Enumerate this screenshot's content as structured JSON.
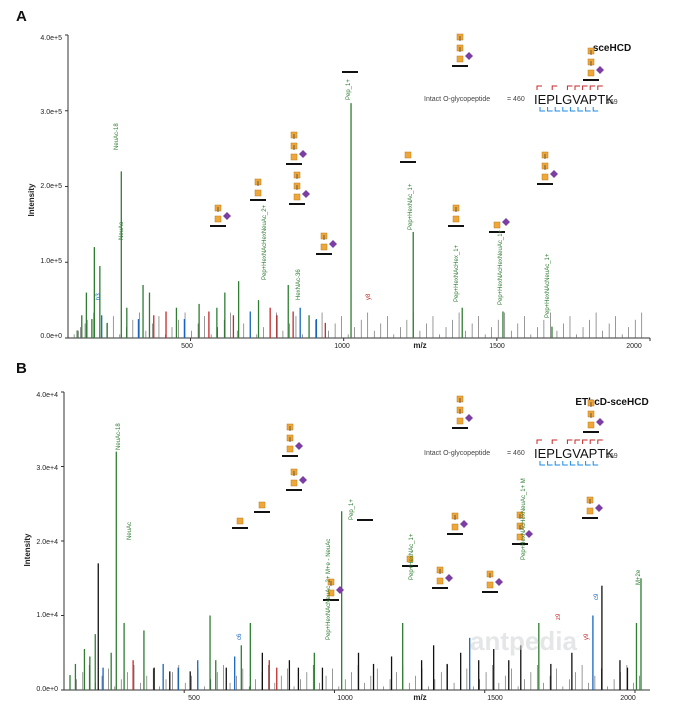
{
  "chart_data": [
    {
      "type": "bar",
      "panel": "A",
      "method": "sceHCD",
      "xlabel": "m/z",
      "ylabel": "Intensity",
      "xlim": [
        100,
        2000
      ],
      "ylim": [
        0,
        400000
      ],
      "yticks": [
        "0.0e+0",
        "1.0e+5",
        "2.0e+5",
        "3.0e+5",
        "4.0e+5"
      ],
      "xticks": [
        "500",
        "1000",
        "1500",
        "2000"
      ],
      "intact_label": "Intact O-glycopeptide",
      "seq_start": "460",
      "sequence": "IEPLGVAPTK",
      "seq_end": "469",
      "peaks": [
        {
          "x": 130,
          "y": 10000,
          "color": "#2e7d32"
        },
        {
          "x": 145,
          "y": 30000,
          "color": "#2e7d32"
        },
        {
          "x": 160,
          "y": 60000,
          "color": "#2e7d32"
        },
        {
          "x": 178,
          "y": 25000,
          "color": "#2e7d32"
        },
        {
          "x": 186,
          "y": 120000,
          "color": "#2e7d32"
        },
        {
          "x": 204,
          "y": 95000,
          "color": "#2e7d32"
        },
        {
          "x": 210,
          "y": 30000,
          "color": "#1565c0"
        },
        {
          "x": 228,
          "y": 20000,
          "color": "#2e7d32"
        },
        {
          "x": 274,
          "y": 220000,
          "color": "#2e7d32"
        },
        {
          "x": 292,
          "y": 40000,
          "color": "#2e7d32"
        },
        {
          "x": 330,
          "y": 25000,
          "color": "#1565c0"
        },
        {
          "x": 345,
          "y": 70000,
          "color": "#2e7d32"
        },
        {
          "x": 366,
          "y": 60000,
          "color": "#2e7d32"
        },
        {
          "x": 380,
          "y": 30000,
          "color": "#c62828"
        },
        {
          "x": 420,
          "y": 35000,
          "color": "#c62828"
        },
        {
          "x": 454,
          "y": 40000,
          "color": "#2e7d32"
        },
        {
          "x": 480,
          "y": 25000,
          "color": "#1565c0"
        },
        {
          "x": 528,
          "y": 45000,
          "color": "#2e7d32"
        },
        {
          "x": 560,
          "y": 35000,
          "color": "#c62828"
        },
        {
          "x": 586,
          "y": 40000,
          "color": "#2e7d32"
        },
        {
          "x": 612,
          "y": 60000,
          "color": "#2e7d32"
        },
        {
          "x": 640,
          "y": 30000,
          "color": "#c62828"
        },
        {
          "x": 657,
          "y": 75000,
          "color": "#2e7d32"
        },
        {
          "x": 695,
          "y": 35000,
          "color": "#1565c0"
        },
        {
          "x": 722,
          "y": 50000,
          "color": "#2e7d32"
        },
        {
          "x": 760,
          "y": 40000,
          "color": "#c62828"
        },
        {
          "x": 782,
          "y": 30000,
          "color": "#c62828"
        },
        {
          "x": 819,
          "y": 70000,
          "color": "#2e7d32"
        },
        {
          "x": 835,
          "y": 35000,
          "color": "#c62828"
        },
        {
          "x": 858,
          "y": 40000,
          "color": "#1565c0"
        },
        {
          "x": 887,
          "y": 30000,
          "color": "#2e7d32"
        },
        {
          "x": 911,
          "y": 25000,
          "color": "#1565c0"
        },
        {
          "x": 940,
          "y": 20000,
          "color": "#c62828"
        },
        {
          "x": 1024,
          "y": 310000,
          "color": "#2e7d32"
        },
        {
          "x": 1227,
          "y": 140000,
          "color": "#2e7d32"
        },
        {
          "x": 1387,
          "y": 40000,
          "color": "#2e7d32"
        },
        {
          "x": 1520,
          "y": 35000,
          "color": "#2e7d32"
        },
        {
          "x": 1680,
          "y": 15000,
          "color": "#2e7d32"
        }
      ]
    },
    {
      "type": "bar",
      "panel": "B",
      "method": "EThcD-sceHCD",
      "xlabel": "m/z",
      "ylabel": "Intensity",
      "xlim": [
        100,
        2050
      ],
      "ylim": [
        0,
        40000
      ],
      "yticks": [
        "0.0e+0",
        "1.0e+4",
        "2.0e+4",
        "3.0e+4",
        "4.0e+4"
      ],
      "xticks": [
        "500",
        "1000",
        "1500",
        "2000"
      ],
      "intact_label": "Intact O-glycopeptide",
      "seq_start": "460",
      "sequence": "IEPLGVAPTK",
      "seq_end": "469",
      "peaks": [
        {
          "x": 120,
          "y": 2000,
          "color": "#2e7d32"
        },
        {
          "x": 138,
          "y": 3500,
          "color": "#2e7d32"
        },
        {
          "x": 168,
          "y": 5500,
          "color": "#2e7d32"
        },
        {
          "x": 186,
          "y": 4500,
          "color": "#2e7d32"
        },
        {
          "x": 204,
          "y": 7500,
          "color": "#2e7d32"
        },
        {
          "x": 214,
          "y": 17000,
          "color": "#111111"
        },
        {
          "x": 230,
          "y": 3000,
          "color": "#1565c0"
        },
        {
          "x": 257,
          "y": 5000,
          "color": "#2e7d32"
        },
        {
          "x": 274,
          "y": 32000,
          "color": "#2e7d32"
        },
        {
          "x": 300,
          "y": 9000,
          "color": "#2e7d32"
        },
        {
          "x": 330,
          "y": 4000,
          "color": "#c62828"
        },
        {
          "x": 366,
          "y": 8000,
          "color": "#2e7d32"
        },
        {
          "x": 400,
          "y": 3000,
          "color": "#111111"
        },
        {
          "x": 430,
          "y": 3500,
          "color": "#1565c0"
        },
        {
          "x": 452,
          "y": 2500,
          "color": "#111111"
        },
        {
          "x": 480,
          "y": 3000,
          "color": "#1565c0"
        },
        {
          "x": 520,
          "y": 2500,
          "color": "#111111"
        },
        {
          "x": 545,
          "y": 4000,
          "color": "#1565c0"
        },
        {
          "x": 586,
          "y": 10000,
          "color": "#2e7d32"
        },
        {
          "x": 605,
          "y": 4000,
          "color": "#2e7d32"
        },
        {
          "x": 640,
          "y": 3000,
          "color": "#111111"
        },
        {
          "x": 668,
          "y": 4500,
          "color": "#1565c0"
        },
        {
          "x": 690,
          "y": 6000,
          "color": "#2e7d32"
        },
        {
          "x": 720,
          "y": 9000,
          "color": "#2e7d32"
        },
        {
          "x": 760,
          "y": 5000,
          "color": "#111111"
        },
        {
          "x": 783,
          "y": 4000,
          "color": "#c62828"
        },
        {
          "x": 808,
          "y": 3000,
          "color": "#c62828"
        },
        {
          "x": 850,
          "y": 4000,
          "color": "#111111"
        },
        {
          "x": 880,
          "y": 3000,
          "color": "#111111"
        },
        {
          "x": 933,
          "y": 5000,
          "color": "#2e7d32"
        },
        {
          "x": 960,
          "y": 3000,
          "color": "#111111"
        },
        {
          "x": 1024,
          "y": 24000,
          "color": "#2e7d32"
        },
        {
          "x": 1080,
          "y": 5000,
          "color": "#111111"
        },
        {
          "x": 1130,
          "y": 3500,
          "color": "#111111"
        },
        {
          "x": 1190,
          "y": 4500,
          "color": "#111111"
        },
        {
          "x": 1227,
          "y": 9000,
          "color": "#2e7d32"
        },
        {
          "x": 1290,
          "y": 4000,
          "color": "#111111"
        },
        {
          "x": 1330,
          "y": 6000,
          "color": "#111111"
        },
        {
          "x": 1375,
          "y": 3500,
          "color": "#111111"
        },
        {
          "x": 1420,
          "y": 5000,
          "color": "#111111"
        },
        {
          "x": 1450,
          "y": 7000,
          "color": "#1565c0"
        },
        {
          "x": 1480,
          "y": 4000,
          "color": "#111111"
        },
        {
          "x": 1530,
          "y": 5500,
          "color": "#111111"
        },
        {
          "x": 1580,
          "y": 4000,
          "color": "#111111"
        },
        {
          "x": 1620,
          "y": 6000,
          "color": "#111111"
        },
        {
          "x": 1680,
          "y": 9000,
          "color": "#2e7d32"
        },
        {
          "x": 1720,
          "y": 3500,
          "color": "#111111"
        },
        {
          "x": 1790,
          "y": 5000,
          "color": "#111111"
        },
        {
          "x": 1860,
          "y": 10000,
          "color": "#1565c0"
        },
        {
          "x": 1890,
          "y": 14000,
          "color": "#111111"
        },
        {
          "x": 1950,
          "y": 4000,
          "color": "#111111"
        },
        {
          "x": 1975,
          "y": 3000,
          "color": "#111111"
        },
        {
          "x": 2005,
          "y": 9000,
          "color": "#2e7d32"
        },
        {
          "x": 2020,
          "y": 15000,
          "color": "#2e7d32"
        }
      ]
    }
  ],
  "panel_a_labels": [
    {
      "text": "NeuAc-18",
      "color": "#2e7d32"
    },
    {
      "text": "Pep_1+",
      "color": "#2e7d32"
    },
    {
      "text": "Pep+HexNAc_1+",
      "color": "#2e7d32"
    },
    {
      "text": "Pep+HexNAcHex_1+",
      "color": "#2e7d32"
    },
    {
      "text": "Pep+HexNAcNeuAc_1+",
      "color": "#2e7d32"
    },
    {
      "text": "Pep+HexNAcHexNeuAc_1+",
      "color": "#2e7d32"
    },
    {
      "text": "NeuAc",
      "color": "#2e7d32"
    },
    {
      "text": "HexNAc-36",
      "color": "#2e7d32"
    },
    {
      "text": "Pep+HexNAcHexNeuAc_2+",
      "color": "#2e7d32"
    },
    {
      "text": "y8",
      "color": "#c62828"
    },
    {
      "text": "b3",
      "color": "#1565c0"
    }
  ],
  "panel_b_labels": [
    {
      "text": "NeuAc-18",
      "color": "#2e7d32"
    },
    {
      "text": "NeuAc",
      "color": "#2e7d32"
    },
    {
      "text": "Pep_1+",
      "color": "#2e7d32"
    },
    {
      "text": "Pep+HexNAc_1+",
      "color": "#2e7d32"
    },
    {
      "text": "Pep+HexNAcHexNeuAc_1+ M",
      "color": "#2e7d32"
    },
    {
      "text": "Pep+HexNAcNeuAc_2+ M+e - NeuAc",
      "color": "#2e7d32"
    },
    {
      "text": "M+2e",
      "color": "#2e7d32"
    },
    {
      "text": "c9",
      "color": "#1565c0"
    },
    {
      "text": "z9",
      "color": "#c62828"
    },
    {
      "text": "y9",
      "color": "#c62828"
    },
    {
      "text": "c6",
      "color": "#1565c0"
    }
  ],
  "watermark": "antpedia"
}
